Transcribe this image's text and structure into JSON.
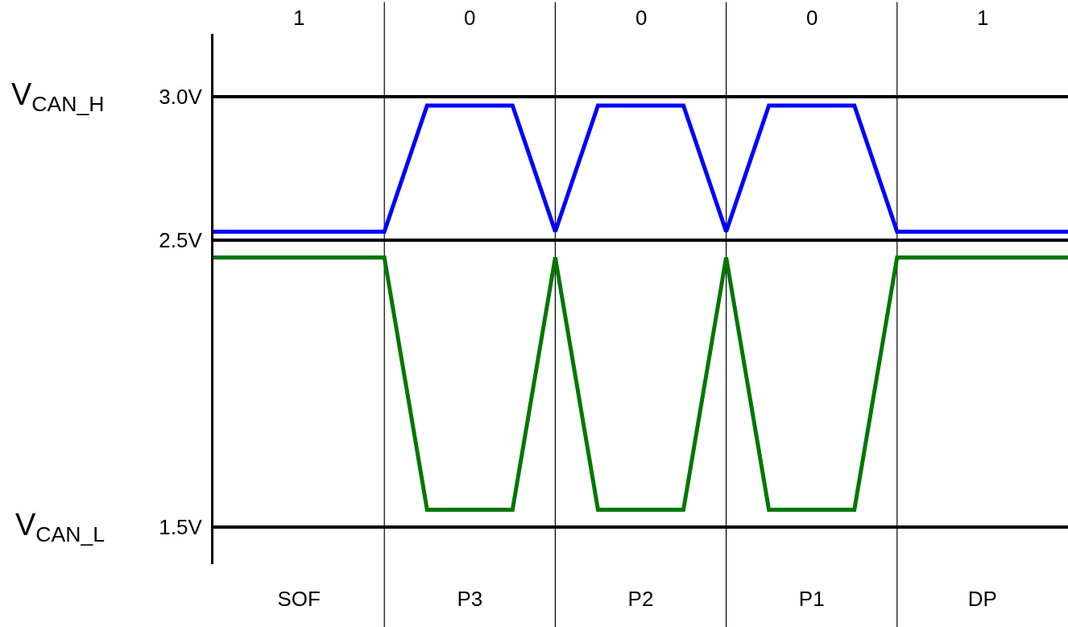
{
  "chart_data": {
    "type": "line",
    "ylim": [
      1.37,
      3.22
    ],
    "categories": [
      null,
      null,
      null,
      null,
      "SOF",
      null,
      null,
      null,
      null,
      null,
      null,
      null,
      "P3",
      null,
      null,
      null,
      null,
      null,
      null,
      null,
      "P2",
      null,
      null,
      null,
      null,
      null,
      null,
      null,
      "P1",
      null,
      null,
      null,
      null,
      null,
      null,
      null,
      "DP",
      null,
      null,
      null,
      null
    ],
    "yticks": [
      {
        "value": 1.5,
        "label": "1.5V"
      },
      {
        "value": 2.5,
        "label": "2.5V"
      },
      {
        "value": 3.0,
        "label": "3.0V"
      }
    ],
    "grid": true,
    "marker": "none",
    "line_style": "solid",
    "series": [
      {
        "color": "#0000ff",
        "values": [
          2.53,
          2.53,
          2.53,
          2.53,
          2.53,
          2.53,
          2.53,
          2.53,
          2.53,
          2.75,
          2.97,
          2.97,
          2.97,
          2.97,
          2.97,
          2.75,
          2.53,
          2.75,
          2.97,
          2.97,
          2.97,
          2.97,
          2.97,
          2.75,
          2.53,
          2.75,
          2.97,
          2.97,
          2.97,
          2.97,
          2.97,
          2.75,
          2.53,
          2.53,
          2.53,
          2.53,
          2.53,
          2.53,
          2.53,
          2.53,
          2.53
        ]
      },
      {
        "color": "#007700",
        "values": [
          2.44,
          2.44,
          2.44,
          2.44,
          2.44,
          2.44,
          2.44,
          2.44,
          2.44,
          2.0,
          1.56,
          1.56,
          1.56,
          1.56,
          1.56,
          2.0,
          2.44,
          2.0,
          1.56,
          1.56,
          1.56,
          1.56,
          1.56,
          2.0,
          2.44,
          2.0,
          1.56,
          1.56,
          1.56,
          1.56,
          1.56,
          2.0,
          2.44,
          2.44,
          2.44,
          2.44,
          2.44,
          2.44,
          2.44,
          2.44,
          2.44
        ]
      }
    ],
    "annotations": [
      "V$_{CAN_H}$",
      "V$_{CAN_L}$",
      "1",
      "0",
      "0",
      "0",
      "1"
    ]
  }
}
